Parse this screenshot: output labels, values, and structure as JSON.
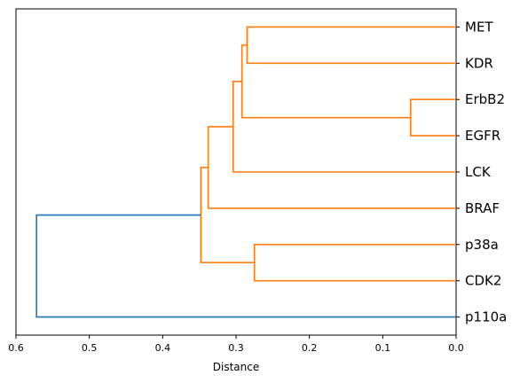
{
  "chart_data": {
    "type": "dendrogram",
    "orientation": "left",
    "xlabel": "Distance",
    "xlim": [
      0.6,
      0.0
    ],
    "x_ticks": [
      0.6,
      0.5,
      0.4,
      0.3,
      0.2,
      0.1,
      0.0
    ],
    "x_tick_labels": [
      "0.6",
      "0.5",
      "0.4",
      "0.3",
      "0.2",
      "0.1",
      "0.0"
    ],
    "leaves": [
      "MET",
      "KDR",
      "ErbB2",
      "EGFR",
      "LCK",
      "BRAF",
      "p38a",
      "CDK2",
      "p110a"
    ],
    "merges": [
      {
        "a": "ErbB2",
        "b": "EGFR",
        "distance": 0.062,
        "color": "#ff7f0e"
      },
      {
        "a": "MET",
        "b": "KDR",
        "distance": 0.285,
        "color": "#ff7f0e"
      },
      {
        "a": "p38a",
        "b": "CDK2",
        "distance": 0.275,
        "color": "#ff7f0e"
      },
      {
        "a": "MET+KDR",
        "b": "ErbB2+EGFR",
        "distance": 0.292,
        "color": "#ff7f0e"
      },
      {
        "a": "MET+KDR+ErbB2+EGFR",
        "b": "LCK",
        "distance": 0.304,
        "color": "#ff7f0e"
      },
      {
        "a": "MET+KDR+ErbB2+EGFR+LCK",
        "b": "BRAF",
        "distance": 0.338,
        "color": "#ff7f0e"
      },
      {
        "a": "MET+KDR+ErbB2+EGFR+LCK+BRAF",
        "b": "p38a+CDK2",
        "distance": 0.348,
        "color": "#ff7f0e"
      },
      {
        "a": "MET+KDR+ErbB2+EGFR+LCK+BRAF+p38a+CDK2",
        "b": "p110a",
        "distance": 0.572,
        "color": "#1f77b4"
      }
    ],
    "colors": {
      "cluster": "#ff7f0e",
      "above_threshold": "#1f77b4"
    },
    "grid": false,
    "legend": "none"
  }
}
